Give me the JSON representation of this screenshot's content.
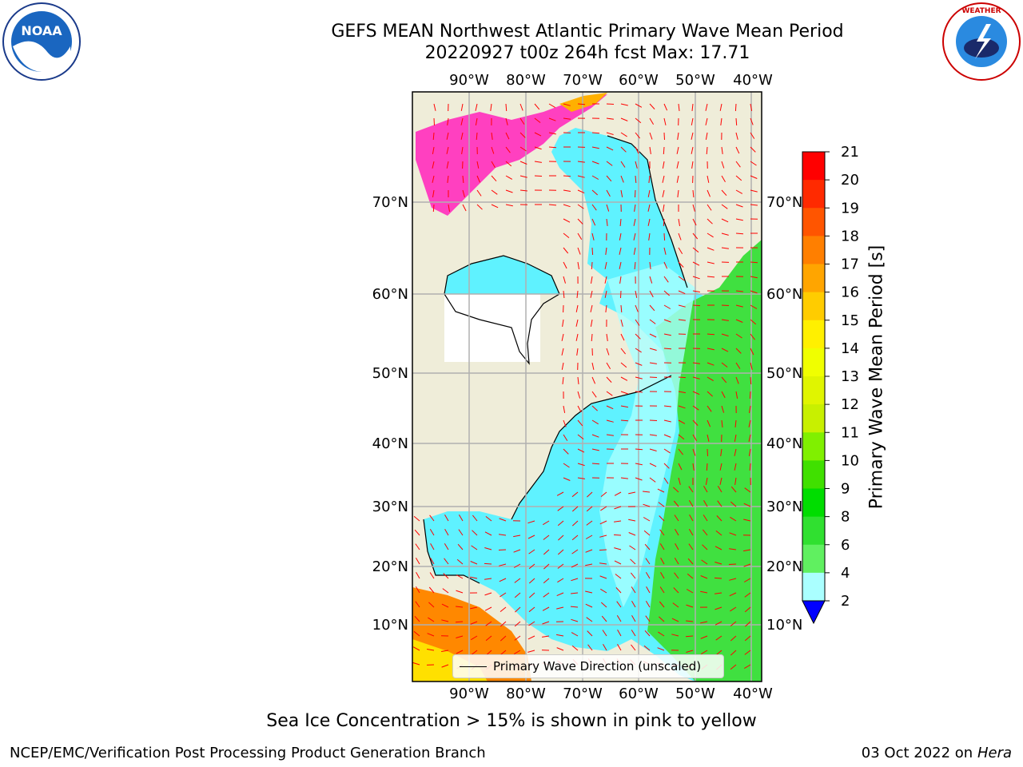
{
  "title_line1": "GEFS MEAN Northwest Atlantic Primary Wave Mean Period",
  "title_line2": "20220927 t00z 264h fcst   Max: 17.71",
  "logos": {
    "left": "NOAA",
    "right": "NATIONAL WEATHER SERVICE",
    "left_icon": "noaa-logo",
    "right_icon": "nws-logo"
  },
  "lon_labels_top": [
    "90°W",
    "80°W",
    "70°W",
    "60°W",
    "50°W",
    "40°W"
  ],
  "lon_labels_bottom": [
    "90°W",
    "80°W",
    "70°W",
    "60°W",
    "50°W",
    "40°W"
  ],
  "lat_labels_left": [
    "70°N",
    "60°N",
    "50°N",
    "40°N",
    "30°N",
    "20°N",
    "10°N"
  ],
  "lat_labels_right": [
    "70°N",
    "60°N",
    "50°N",
    "40°N",
    "30°N",
    "20°N",
    "10°N"
  ],
  "colorbar": {
    "label": "Primary Wave Mean Period [s]",
    "ticks": [
      "21",
      "20",
      "19",
      "18",
      "17",
      "16",
      "15",
      "14",
      "13",
      "12",
      "11",
      "10",
      "9",
      "8",
      "6",
      "4",
      "2"
    ],
    "colors": [
      "#ff0000",
      "#ff2a00",
      "#ff5500",
      "#ff7f00",
      "#ffa500",
      "#ffcc00",
      "#fff000",
      "#f0ff00",
      "#e0f500",
      "#c8f000",
      "#80f000",
      "#40e000",
      "#00dd00",
      "#30e030",
      "#60f060",
      "#aaffff",
      "#60ffff",
      "#00ffff",
      "#00f0f8",
      "#0080ff"
    ],
    "extend_color": "#0000ff"
  },
  "legend": {
    "label": "Primary Wave Direction (unscaled)"
  },
  "footer_note": "Sea Ice Concentration > 15% is shown in pink to yellow",
  "credit": "NCEP/EMC/Verification Post Processing Product Generation Branch",
  "date": "03 Oct 2022 on",
  "date_host": "Hera",
  "colors": {
    "land": "#efedd9",
    "grid": "#b0b0b0",
    "arrow": "#ff0000",
    "ocean_low": "#40f0ff",
    "ocean_mid": "#a8ffff",
    "ocean_high": "#40e040",
    "ice": "#ff40c0"
  }
}
